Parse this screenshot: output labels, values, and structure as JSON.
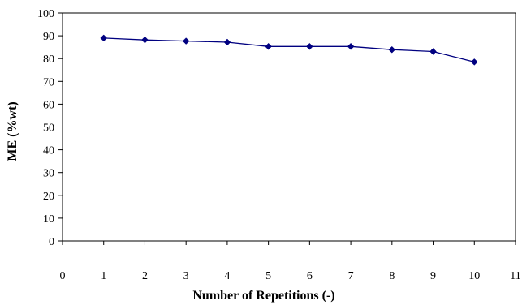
{
  "chart_data": {
    "type": "line",
    "title": "",
    "xlabel": "Number of Repetitions (-)",
    "ylabel": "ME (%wt)",
    "xlim": [
      0,
      11
    ],
    "ylim": [
      0,
      100
    ],
    "x_ticks": [
      0,
      1,
      2,
      3,
      4,
      5,
      6,
      7,
      8,
      9,
      10,
      11
    ],
    "y_ticks": [
      0,
      10,
      20,
      30,
      40,
      50,
      60,
      70,
      80,
      90,
      100
    ],
    "grid": false,
    "legend": "none",
    "series": [
      {
        "x": [
          1,
          2,
          3,
          4,
          5,
          6,
          7,
          8,
          9,
          10
        ],
        "y": [
          89.0,
          88.2,
          87.7,
          87.2,
          85.3,
          85.3,
          85.3,
          83.9,
          83.1,
          78.5
        ],
        "color": "#000080",
        "marker": "diamond"
      }
    ]
  }
}
